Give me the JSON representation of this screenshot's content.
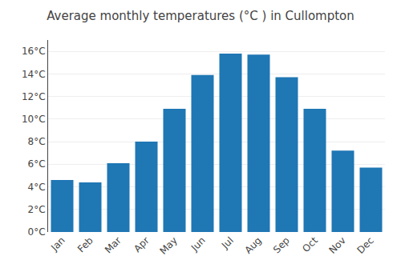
{
  "chart_data": {
    "type": "bar",
    "title": "Average monthly temperatures (°C ) in Cullompton",
    "categories": [
      "Jan",
      "Feb",
      "Mar",
      "Apr",
      "May",
      "Jun",
      "Jul",
      "Aug",
      "Sep",
      "Oct",
      "Nov",
      "Dec"
    ],
    "values": [
      4.6,
      4.4,
      6.1,
      8.0,
      10.9,
      13.9,
      15.8,
      15.7,
      13.7,
      10.9,
      7.2,
      5.7
    ],
    "ylim": [
      0,
      17
    ],
    "yticks": [
      {
        "value": 0,
        "label": "0°C"
      },
      {
        "value": 2,
        "label": "2°C"
      },
      {
        "value": 4,
        "label": "4°C"
      },
      {
        "value": 6,
        "label": "6°C"
      },
      {
        "value": 8,
        "label": "8°C"
      },
      {
        "value": 10,
        "label": "10°C"
      },
      {
        "value": 12,
        "label": "12°C"
      },
      {
        "value": 14,
        "label": "14°C"
      },
      {
        "value": 16,
        "label": "16°C"
      }
    ],
    "grid": true
  }
}
